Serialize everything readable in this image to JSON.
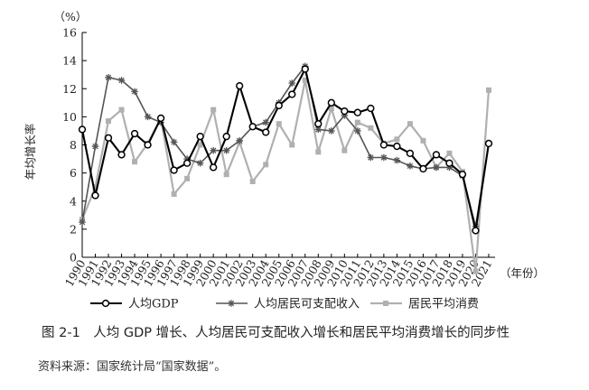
{
  "chart_data": {
    "type": "line",
    "title": "",
    "xlabel": "（年份）",
    "ylabel": "年均增长率",
    "y_unit": "（%）",
    "ylim": [
      0,
      16
    ],
    "yticks": [
      0,
      2,
      4,
      6,
      8,
      10,
      12,
      14,
      16
    ],
    "x": [
      "1990",
      "1991",
      "1992",
      "1993",
      "1994",
      "1995",
      "1996",
      "1997",
      "1998",
      "1999",
      "2000",
      "2001",
      "2002",
      "2003",
      "2004",
      "2005",
      "2006",
      "2007",
      "2008",
      "2009",
      "2010",
      "2011",
      "2012",
      "2013",
      "2014",
      "2015",
      "2016",
      "2017",
      "2018",
      "2019",
      "2020",
      "2021"
    ],
    "grid": false,
    "legend_position": "bottom",
    "series": [
      {
        "name": "人均GDP",
        "color": "#000000",
        "marker": "circle",
        "values": [
          9.1,
          4.4,
          8.5,
          7.3,
          8.8,
          8.0,
          9.9,
          6.2,
          6.7,
          8.6,
          6.4,
          8.6,
          12.2,
          9.3,
          8.9,
          10.8,
          11.6,
          13.4,
          9.5,
          11.0,
          10.4,
          10.3,
          10.6,
          8.0,
          7.9,
          7.4,
          6.3,
          7.3,
          6.7,
          5.9,
          1.9,
          8.1
        ]
      },
      {
        "name": "人均居民可支配收入",
        "color": "#555555",
        "marker": "star",
        "values": [
          2.5,
          7.9,
          12.8,
          12.6,
          11.8,
          10.0,
          9.6,
          8.2,
          7.0,
          6.7,
          7.6,
          7.6,
          8.3,
          9.3,
          9.6,
          11.0,
          12.4,
          13.6,
          9.1,
          9.0,
          10.1,
          9.0,
          7.1,
          7.1,
          6.9,
          6.5,
          6.3,
          6.4,
          6.4,
          5.8,
          2.2,
          8.1
        ]
      },
      {
        "name": "居民平均消费",
        "color": "#b0b0b0",
        "marker": "square",
        "values": [
          2.7,
          5.0,
          9.7,
          10.5,
          6.8,
          8.1,
          9.9,
          4.5,
          5.6,
          8.0,
          10.5,
          5.9,
          8.2,
          5.4,
          6.6,
          9.5,
          8.0,
          12.6,
          7.5,
          10.6,
          7.6,
          9.6,
          9.2,
          8.1,
          8.4,
          9.5,
          8.3,
          6.4,
          7.4,
          6.1,
          -1.0,
          11.9
        ]
      }
    ]
  },
  "caption": "图 2-1　人均 GDP 增长、人均居民可支配收入增长和居民平均消费增长的同步性",
  "source": "资料来源：国家统计局“国家数据”。"
}
